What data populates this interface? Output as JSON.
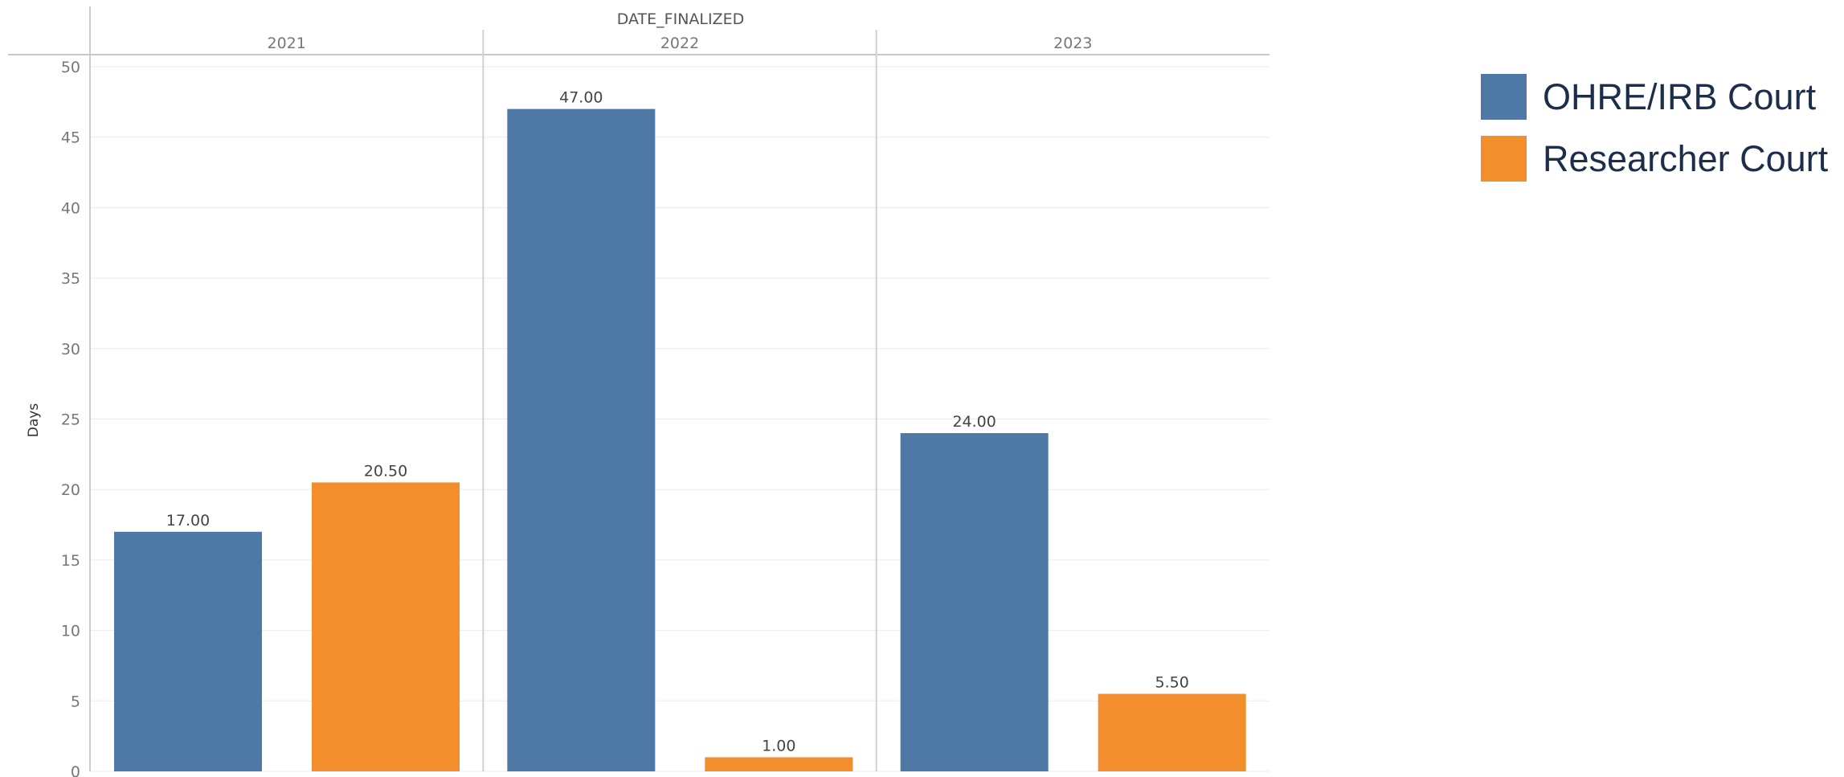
{
  "chart_data": {
    "type": "bar",
    "title": "",
    "column_header": "DATE_FINALIZED",
    "categories": [
      "2021",
      "2022",
      "2023"
    ],
    "series": [
      {
        "name": "OHRE/IRB Court",
        "color": "#4e79a7",
        "values": [
          17.0,
          47.0,
          24.0
        ],
        "labels": [
          "17.00",
          "47.00",
          "24.00"
        ]
      },
      {
        "name": "Researcher Court",
        "color": "#f28e2b",
        "values": [
          20.5,
          1.0,
          5.5
        ],
        "labels": [
          "20.50",
          "1.00",
          "5.50"
        ]
      }
    ],
    "ylabel": "Days",
    "xlabel": "",
    "ylim": [
      0,
      50
    ],
    "yticks": [
      "0",
      "5",
      "10",
      "15",
      "20",
      "25",
      "30",
      "35",
      "40",
      "45",
      "50"
    ],
    "grid": true,
    "legend_position": "right"
  }
}
